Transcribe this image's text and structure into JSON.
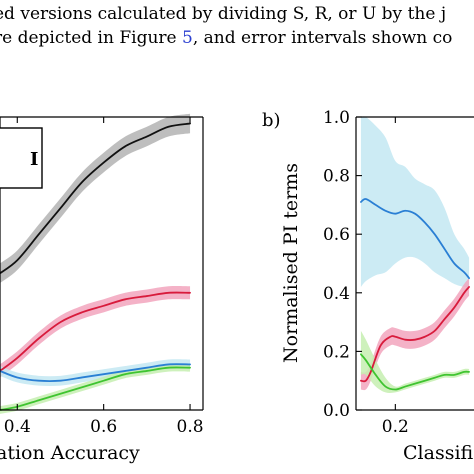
{
  "caption": {
    "line1": "ed versions calculated by dividing S, R, or U by the j",
    "line2_before": "re depicted in Figure ",
    "line2_ref": "5",
    "line2_after": ", and error intervals shown co"
  },
  "chart_data": [
    {
      "panel": "a",
      "type": "line",
      "xlabel": "ation Accuracy",
      "ylabel": "",
      "xlim": [
        0.36,
        0.83
      ],
      "ylim": [
        0.3,
        1.2
      ],
      "xticks": [
        "0.4",
        "0.6",
        "0.8"
      ],
      "legend_fragment": "I",
      "series": [
        {
          "color": "#111111",
          "band_color": "#b3b3b3",
          "x": [
            0.36,
            0.4,
            0.45,
            0.5,
            0.55,
            0.6,
            0.65,
            0.7,
            0.75,
            0.8
          ],
          "values": [
            0.72,
            0.76,
            0.84,
            0.92,
            1.0,
            1.06,
            1.11,
            1.14,
            1.17,
            1.18
          ],
          "band": 0.03
        },
        {
          "color": "#d81b3c",
          "band_color": "#f2a5bd",
          "x": [
            0.36,
            0.4,
            0.45,
            0.5,
            0.55,
            0.6,
            0.65,
            0.7,
            0.75,
            0.8
          ],
          "values": [
            0.42,
            0.46,
            0.52,
            0.57,
            0.6,
            0.62,
            0.64,
            0.65,
            0.66,
            0.66
          ],
          "band": 0.02
        },
        {
          "color": "#2a7fd4",
          "band_color": "#c3e7f2",
          "x": [
            0.36,
            0.4,
            0.45,
            0.5,
            0.55,
            0.6,
            0.65,
            0.7,
            0.75,
            0.8
          ],
          "values": [
            0.42,
            0.4,
            0.39,
            0.39,
            0.4,
            0.41,
            0.42,
            0.43,
            0.44,
            0.44
          ],
          "band": 0.015
        },
        {
          "color": "#3fc430",
          "band_color": "#c6efb0",
          "x": [
            0.36,
            0.4,
            0.45,
            0.5,
            0.55,
            0.6,
            0.65,
            0.7,
            0.75,
            0.8
          ],
          "values": [
            0.3,
            0.31,
            0.33,
            0.35,
            0.37,
            0.39,
            0.41,
            0.42,
            0.43,
            0.43
          ],
          "band": 0.012
        }
      ]
    },
    {
      "panel": "b",
      "panel_label": "b)",
      "type": "line",
      "xlabel": "Classifi",
      "ylabel": "Normalised PI terms",
      "xlim": [
        0.12,
        0.36
      ],
      "ylim": [
        0.0,
        1.0
      ],
      "xticks": [
        "0.2"
      ],
      "yticks": [
        "0.0",
        "0.2",
        "0.4",
        "0.6",
        "0.8",
        "1.0"
      ],
      "series": [
        {
          "color": "#2a7fd4",
          "band_color": "#c3e7f2",
          "x": [
            0.13,
            0.14,
            0.16,
            0.18,
            0.2,
            0.22,
            0.24,
            0.26,
            0.28,
            0.3,
            0.32,
            0.34,
            0.35
          ],
          "values": [
            0.71,
            0.72,
            0.7,
            0.68,
            0.67,
            0.68,
            0.67,
            0.64,
            0.6,
            0.55,
            0.5,
            0.47,
            0.45
          ],
          "lower": [
            0.42,
            0.44,
            0.46,
            0.47,
            0.5,
            0.52,
            0.52,
            0.5,
            0.47,
            0.45,
            0.43,
            0.42,
            0.42
          ],
          "upper": [
            1.0,
            1.0,
            0.97,
            0.93,
            0.85,
            0.83,
            0.79,
            0.77,
            0.75,
            0.69,
            0.6,
            0.55,
            0.52
          ]
        },
        {
          "color": "#d81b3c",
          "band_color": "#f2a5bd",
          "x": [
            0.13,
            0.14,
            0.15,
            0.17,
            0.19,
            0.2,
            0.22,
            0.24,
            0.26,
            0.28,
            0.3,
            0.32,
            0.34,
            0.35
          ],
          "values": [
            0.1,
            0.1,
            0.13,
            0.22,
            0.25,
            0.25,
            0.24,
            0.24,
            0.25,
            0.27,
            0.31,
            0.35,
            0.4,
            0.42
          ],
          "band": 0.03
        },
        {
          "color": "#3fc430",
          "band_color": "#c6efb0",
          "x": [
            0.13,
            0.14,
            0.16,
            0.18,
            0.2,
            0.22,
            0.24,
            0.26,
            0.28,
            0.3,
            0.32,
            0.34,
            0.35
          ],
          "values": [
            0.19,
            0.17,
            0.12,
            0.08,
            0.07,
            0.08,
            0.09,
            0.1,
            0.11,
            0.12,
            0.12,
            0.13,
            0.13
          ],
          "lower": [
            0.12,
            0.12,
            0.08,
            0.06,
            0.06,
            0.07,
            0.08,
            0.09,
            0.1,
            0.11,
            0.11,
            0.12,
            0.12
          ],
          "upper": [
            0.27,
            0.24,
            0.17,
            0.11,
            0.08,
            0.09,
            0.1,
            0.11,
            0.12,
            0.13,
            0.13,
            0.14,
            0.14
          ]
        }
      ]
    }
  ]
}
